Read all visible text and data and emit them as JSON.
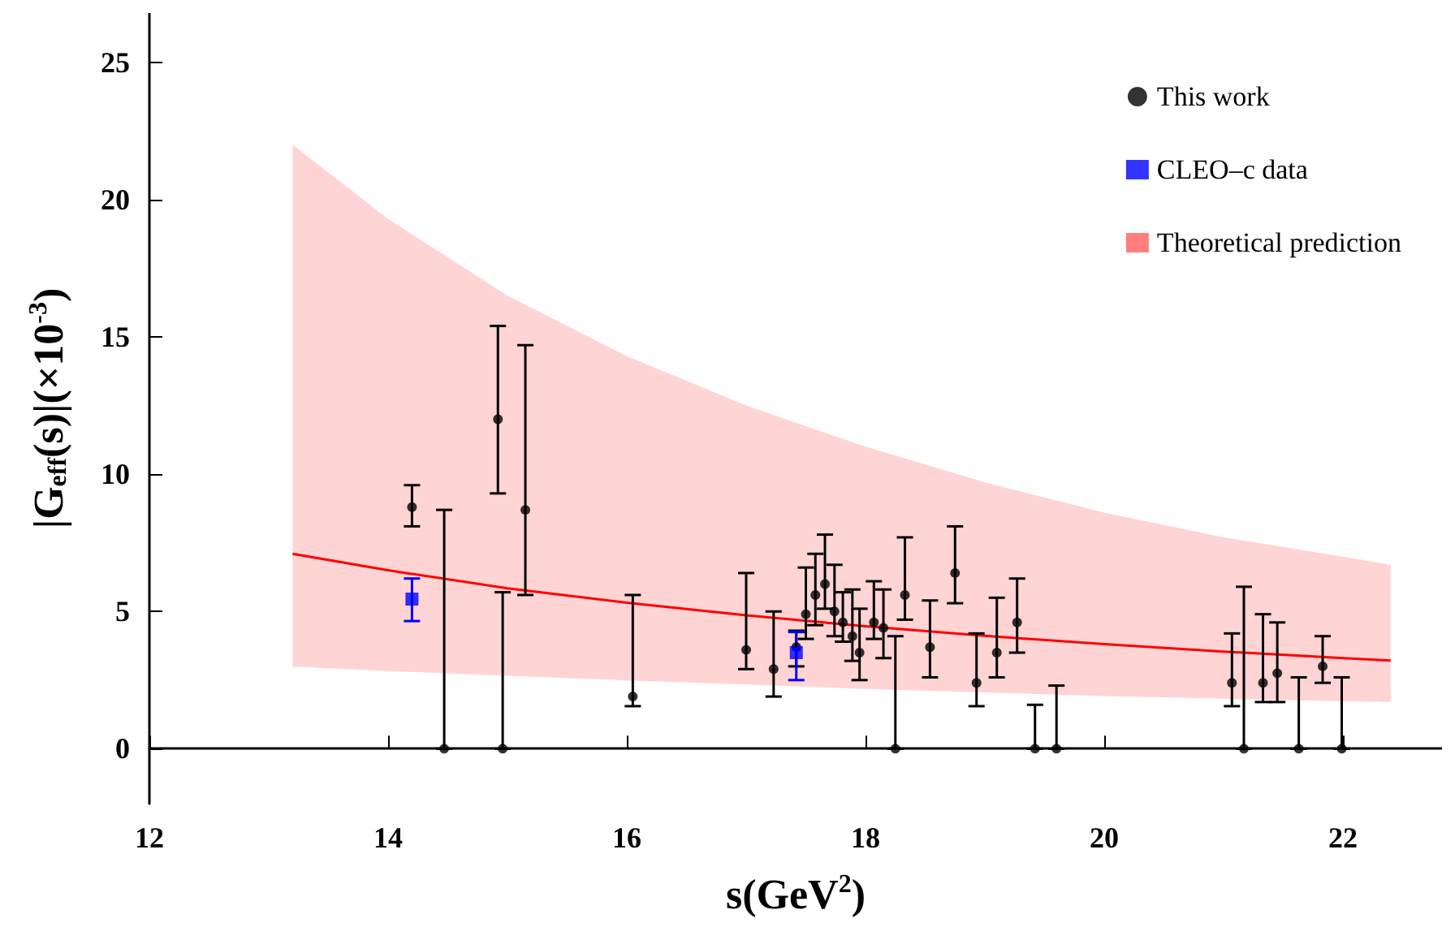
{
  "chart_data": {
    "type": "scatter",
    "xlabel": "s(GeV$^{2}$)",
    "ylabel": "|G$_{eff}$(s)|(×10$^{-3}$)",
    "xlim": [
      12,
      22.83
    ],
    "xticks": [
      12,
      14,
      16,
      18,
      20,
      22
    ],
    "ylim": [
      -2,
      26.8
    ],
    "yticks": [
      0,
      5,
      10,
      15,
      20,
      25
    ],
    "grid": false,
    "legend": "top right",
    "series": [
      {
        "name": "This work",
        "marker": "circle",
        "color": "#000000",
        "x": [
          14.2,
          14.47,
          14.92,
          14.96,
          15.15,
          16.05,
          17.0,
          17.23,
          17.42,
          17.5,
          17.58,
          17.66,
          17.74,
          17.81,
          17.89,
          17.95,
          18.07,
          18.15,
          18.25,
          18.33,
          18.54,
          18.75,
          18.93,
          19.1,
          19.27,
          19.42,
          19.6,
          21.07,
          21.17,
          21.33,
          21.45,
          21.63,
          21.83,
          21.99
        ],
        "values": [
          8.8,
          0,
          12.0,
          0,
          8.7,
          1.9,
          3.6,
          2.9,
          3.7,
          4.9,
          5.6,
          6.0,
          5.0,
          4.6,
          4.1,
          3.5,
          4.6,
          4.4,
          0,
          5.6,
          3.7,
          6.4,
          2.4,
          3.5,
          4.6,
          0,
          0,
          2.4,
          0,
          2.4,
          2.75,
          0,
          3.0,
          0
        ],
        "errors": [
          [
            8.1,
            9.6
          ],
          [
            0,
            8.7
          ],
          [
            9.3,
            15.4
          ],
          [
            0,
            5.7
          ],
          [
            5.6,
            14.7
          ],
          [
            1.55,
            5.6
          ],
          [
            2.9,
            6.4
          ],
          [
            1.9,
            5.0
          ],
          [
            3.0,
            4.3
          ],
          [
            4.0,
            6.6
          ],
          [
            4.5,
            7.1
          ],
          [
            5.1,
            7.8
          ],
          [
            4.1,
            6.7
          ],
          [
            3.9,
            5.7
          ],
          [
            3.2,
            5.8
          ],
          [
            2.5,
            5.1
          ],
          [
            4.0,
            6.1
          ],
          [
            3.3,
            5.8
          ],
          [
            0,
            4.1
          ],
          [
            4.7,
            7.7
          ],
          [
            2.6,
            5.4
          ],
          [
            5.3,
            8.1
          ],
          [
            1.55,
            4.2
          ],
          [
            2.6,
            5.5
          ],
          [
            3.5,
            6.2
          ],
          [
            0,
            1.6
          ],
          [
            0,
            2.3
          ],
          [
            1.55,
            4.2
          ],
          [
            0,
            5.9
          ],
          [
            1.7,
            4.9
          ],
          [
            1.7,
            4.6
          ],
          [
            0,
            2.6
          ],
          [
            2.4,
            4.1
          ],
          [
            0,
            2.6
          ]
        ]
      },
      {
        "name": "CLEO–c data",
        "marker": "square",
        "color": "#0000ff",
        "x": [
          14.2,
          17.42
        ],
        "values": [
          5.45,
          3.5
        ],
        "errors": [
          [
            4.65,
            6.2
          ],
          [
            2.5,
            4.25
          ]
        ]
      },
      {
        "name": "Theoretical prediction",
        "type": "line",
        "color": "#ff0000",
        "marker": "none",
        "x": [
          13.2,
          14,
          15,
          16,
          17,
          18,
          19,
          20,
          21,
          22,
          22.4
        ],
        "values": [
          7.1,
          6.5,
          5.84,
          5.32,
          4.86,
          4.46,
          4.11,
          3.81,
          3.54,
          3.3,
          3.21
        ],
        "lower": [
          3.0,
          2.83,
          2.66,
          2.49,
          2.34,
          2.18,
          2.05,
          1.92,
          1.82,
          1.73,
          1.7
        ],
        "upper": [
          22.0,
          19.3,
          16.5,
          14.3,
          12.5,
          11.0,
          9.7,
          8.6,
          7.7,
          7.0,
          6.7
        ]
      }
    ]
  }
}
